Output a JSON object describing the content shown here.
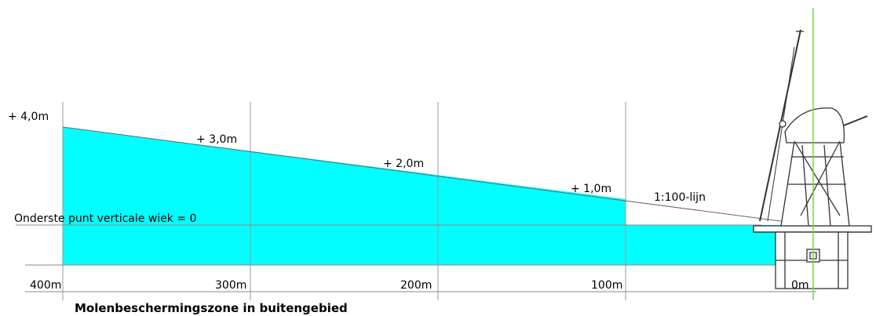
{
  "caption": "Molenbeschermingszone in buitengebied",
  "distance_labels": [
    "400m",
    "300m",
    "200m",
    "100m",
    "0m"
  ],
  "height_labels": [
    "+ 4,0m",
    "+ 3,0m",
    "+ 2,0m",
    "+ 1,0m"
  ],
  "ratio_label": "1:100-lijn",
  "reference_label": "Onderste punt verticale wiek = 0",
  "colors": {
    "zone_fill": "#00ffff",
    "grid_line": "#999999",
    "slope_line": "#666666",
    "axis_line": "#888888",
    "mill_line": "#333333",
    "mill_axis": "#66dd44"
  },
  "icons": {
    "windmill": "windmill-icon"
  }
}
